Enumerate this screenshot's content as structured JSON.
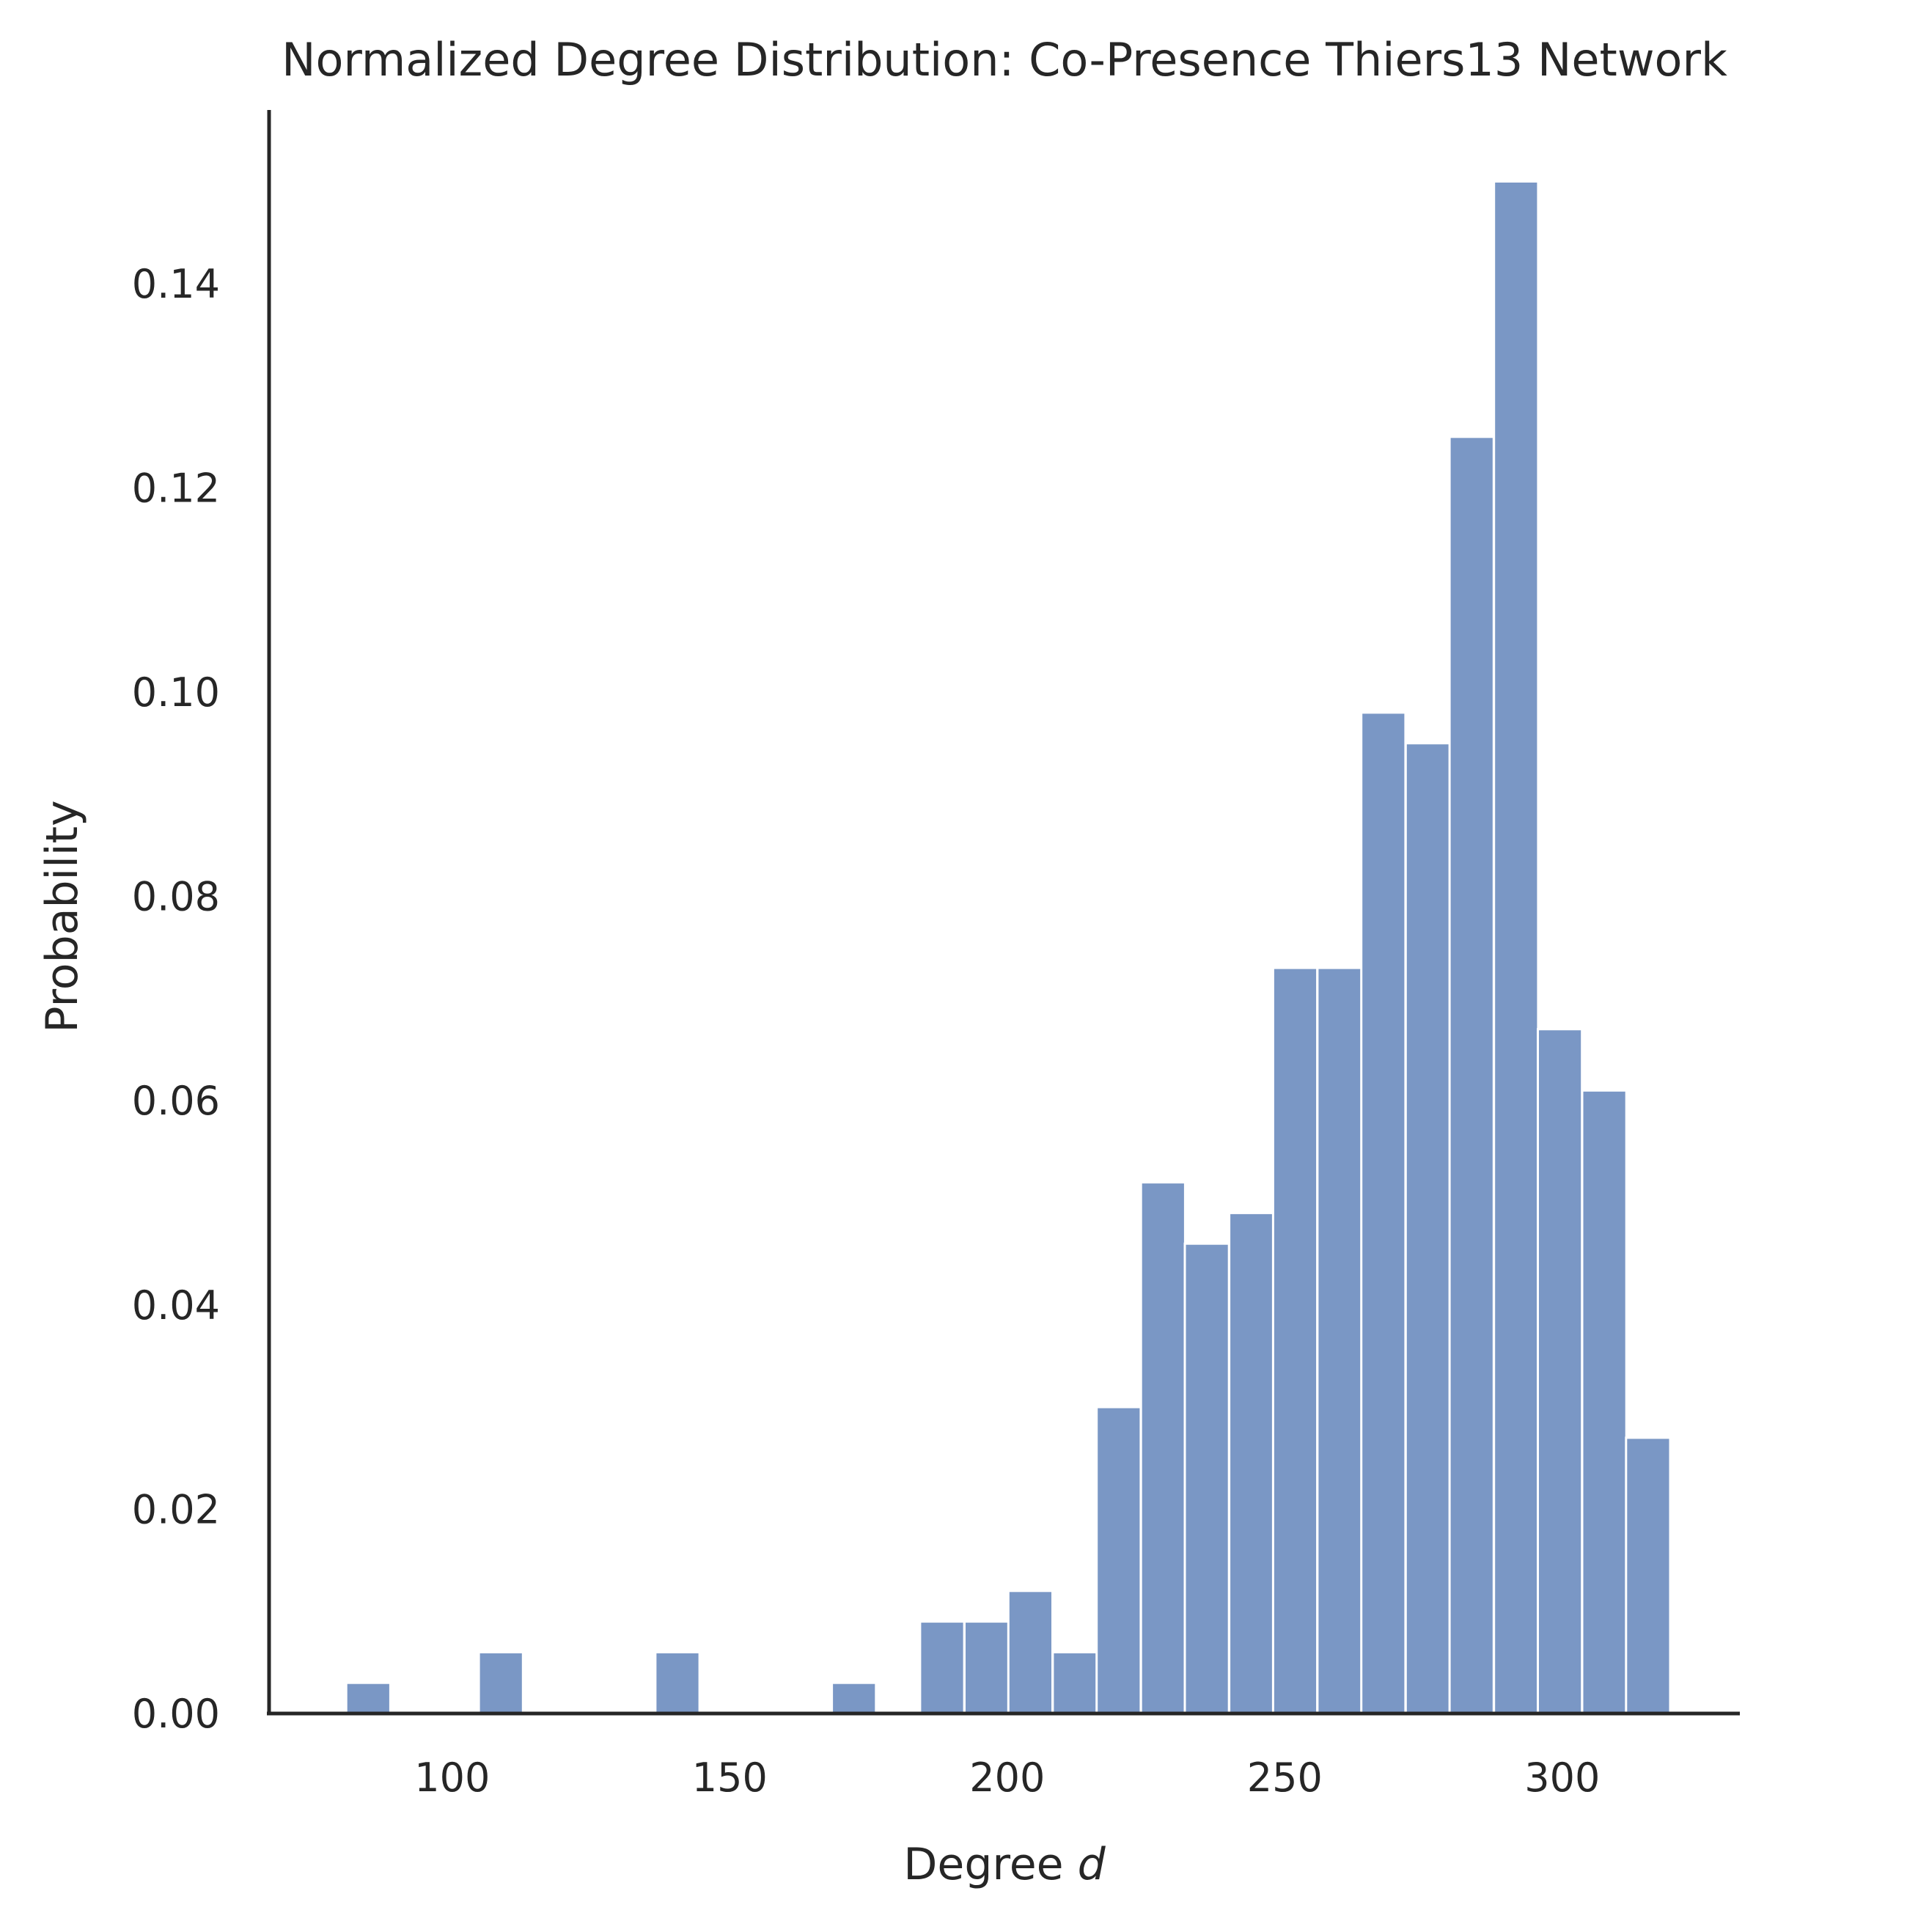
{
  "chart_data": {
    "type": "bar",
    "title": "Normalized Degree Distribution: Co-Presence Thiers13 Network",
    "xlabel_prefix": "Degree ",
    "xlabel_var": "d",
    "ylabel": "Probability",
    "xlim": [
      67,
      332
    ],
    "ylim": [
      0,
      0.157
    ],
    "xticks": [
      100,
      150,
      200,
      250,
      300
    ],
    "yticks": [
      0.0,
      0.02,
      0.04,
      0.06,
      0.08,
      0.1,
      0.12,
      0.14
    ],
    "ytick_labels": [
      "0.00",
      "0.02",
      "0.04",
      "0.06",
      "0.08",
      "0.10",
      "0.12",
      "0.14"
    ],
    "bar_color": "#7a97c5",
    "bin_width": 7.95,
    "bins": [
      {
        "x0": 80.9,
        "value": 0.003
      },
      {
        "x0": 104.8,
        "value": 0.006
      },
      {
        "x0": 136.6,
        "value": 0.006
      },
      {
        "x0": 168.4,
        "value": 0.003
      },
      {
        "x0": 184.3,
        "value": 0.009
      },
      {
        "x0": 192.3,
        "value": 0.009
      },
      {
        "x0": 200.2,
        "value": 0.012
      },
      {
        "x0": 208.2,
        "value": 0.006
      },
      {
        "x0": 216.1,
        "value": 0.03
      },
      {
        "x0": 224.1,
        "value": 0.052
      },
      {
        "x0": 232.0,
        "value": 0.046
      },
      {
        "x0": 240.0,
        "value": 0.049
      },
      {
        "x0": 247.9,
        "value": 0.073
      },
      {
        "x0": 255.9,
        "value": 0.073
      },
      {
        "x0": 263.8,
        "value": 0.098
      },
      {
        "x0": 271.8,
        "value": 0.095
      },
      {
        "x0": 279.7,
        "value": 0.125
      },
      {
        "x0": 287.7,
        "value": 0.15
      },
      {
        "x0": 295.6,
        "value": 0.067
      },
      {
        "x0": 303.6,
        "value": 0.061
      },
      {
        "x0": 311.5,
        "value": 0.027
      }
    ]
  }
}
